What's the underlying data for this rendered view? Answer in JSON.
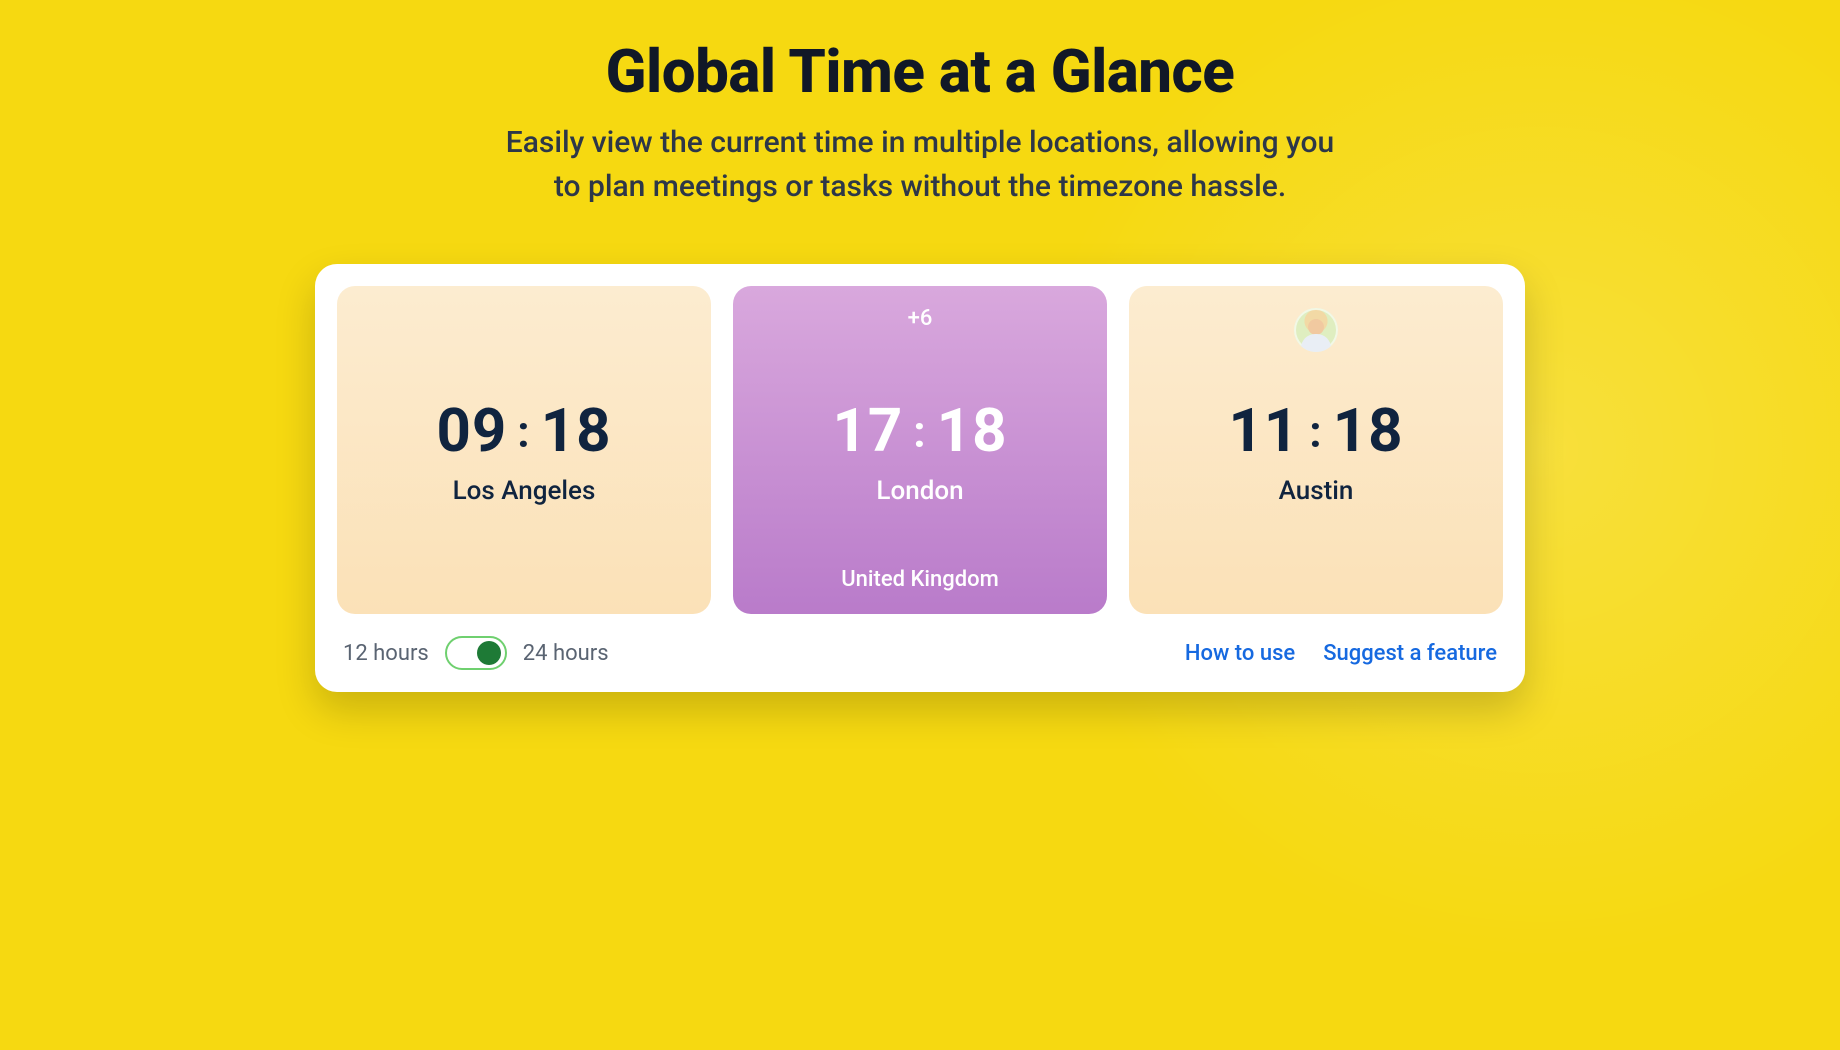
{
  "header": {
    "title": "Global Time at a Glance",
    "subtitle_line1": "Easily view the current time in multiple locations, allowing you",
    "subtitle_line2": "to plan meetings or tasks without the timezone hassle."
  },
  "colors": {
    "page_bg": "#f6d911",
    "panel_bg": "#ffffff",
    "text_dark": "#10243f",
    "link": "#1669e0",
    "switch_border": "#6fd06f",
    "switch_knob": "#1e7a36",
    "warm_grad_top": "#fcecd0",
    "warm_grad_bottom": "#fbe1b7",
    "purple_grad_top": "#d9a8dd",
    "purple_grad_bottom": "#b97bca"
  },
  "cards": [
    {
      "variant": "warm",
      "hours": "09",
      "minutes": "18",
      "city": "Los Angeles",
      "offset": "",
      "country": "",
      "has_avatar": false
    },
    {
      "variant": "purple",
      "hours": "17",
      "minutes": "18",
      "city": "London",
      "offset": "+6",
      "country": "United Kingdom",
      "has_avatar": false
    },
    {
      "variant": "warm",
      "hours": "11",
      "minutes": "18",
      "city": "Austin",
      "offset": "",
      "country": "",
      "has_avatar": true
    }
  ],
  "footer": {
    "label_12h": "12 hours",
    "label_24h": "24 hours",
    "toggle_on_24h": true,
    "link_howto": "How to use",
    "link_suggest": "Suggest a feature"
  }
}
